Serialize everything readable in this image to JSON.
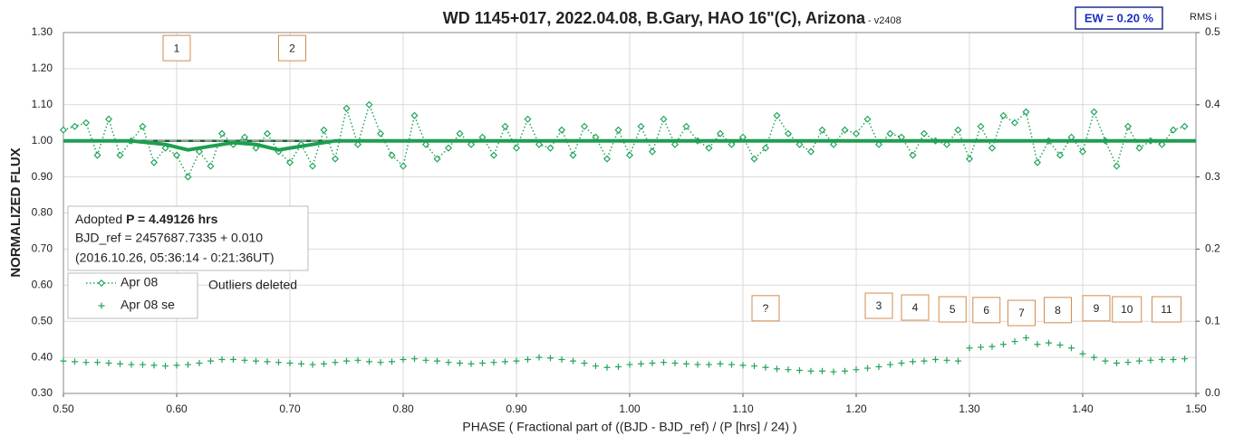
{
  "chart_data": {
    "type": "scatter",
    "title": "WD 1145+017, 2022.04.08, B.Gary, HAO 16\"(C), Arizona",
    "subtitle": " - v2408",
    "x_label": "PHASE ( Fractional part of ((BJD - BJD_ref) / (P [hrs] / 24) )",
    "y_label": "NORMALIZED FLUX",
    "y2_label": "RMS i",
    "ew_label": "EW = 0.20 %",
    "info": {
      "prefix": "Adopted ",
      "period": "P = 4.49126 hrs",
      "bjd": "BJD_ref = 2457687.7335 + 0.010",
      "date": "(2016.10.26, 05:36:14 - 0:21:36UT)"
    },
    "note": "Outliers deleted",
    "xlim": [
      0.5,
      1.5
    ],
    "xticks": [
      {
        "value": 0.5,
        "label": "0.50"
      },
      {
        "value": 0.6,
        "label": "0.60"
      },
      {
        "value": 0.7,
        "label": "0.70"
      },
      {
        "value": 0.8,
        "label": "0.80"
      },
      {
        "value": 0.9,
        "label": "0.90"
      },
      {
        "value": 1.0,
        "label": "1.00"
      },
      {
        "value": 1.1,
        "label": "1.10"
      },
      {
        "value": 1.2,
        "label": "1.20"
      },
      {
        "value": 1.3,
        "label": "1.30"
      },
      {
        "value": 1.4,
        "label": "1.40"
      },
      {
        "value": 1.5,
        "label": "1.50"
      }
    ],
    "ylim": [
      0.3,
      1.3
    ],
    "yticks": [
      {
        "value": 0.3,
        "label": "0.30"
      },
      {
        "value": 0.4,
        "label": "0.40"
      },
      {
        "value": 0.5,
        "label": "0.50"
      },
      {
        "value": 0.6,
        "label": "0.60"
      },
      {
        "value": 0.7,
        "label": "0.70"
      },
      {
        "value": 0.8,
        "label": "0.80"
      },
      {
        "value": 0.9,
        "label": "0.90"
      },
      {
        "value": 1.0,
        "label": "1.00"
      },
      {
        "value": 1.1,
        "label": "1.10"
      },
      {
        "value": 1.2,
        "label": "1.20"
      },
      {
        "value": 1.3,
        "label": "1.30"
      }
    ],
    "y2lim": [
      0,
      0.5
    ],
    "y2ticks": [
      {
        "value": 0,
        "label": "0.0"
      },
      0.1,
      0.2,
      0.3,
      0.4,
      0.5
    ],
    "grid": true,
    "reference_line": 1.0,
    "series": [
      {
        "name": "Apr 08",
        "color": "#22a55a",
        "marker": "diamond",
        "line": "dotted",
        "x": [
          0.5,
          0.51,
          0.52,
          0.53,
          0.54,
          0.55,
          0.56,
          0.57,
          0.58,
          0.59,
          0.6,
          0.61,
          0.62,
          0.63,
          0.64,
          0.65,
          0.66,
          0.67,
          0.68,
          0.69,
          0.7,
          0.71,
          0.72,
          0.73,
          0.74,
          0.75,
          0.76,
          0.77,
          0.78,
          0.79,
          0.8,
          0.81,
          0.82,
          0.83,
          0.84,
          0.85,
          0.86,
          0.87,
          0.88,
          0.89,
          0.9,
          0.91,
          0.92,
          0.93,
          0.94,
          0.95,
          0.96,
          0.97,
          0.98,
          0.99,
          1.0,
          1.01,
          1.02,
          1.03,
          1.04,
          1.05,
          1.06,
          1.07,
          1.08,
          1.09,
          1.1,
          1.11,
          1.12,
          1.13,
          1.14,
          1.15,
          1.16,
          1.17,
          1.18,
          1.19,
          1.2,
          1.21,
          1.22,
          1.23,
          1.24,
          1.25,
          1.26,
          1.27,
          1.28,
          1.29,
          1.3,
          1.31,
          1.32,
          1.33,
          1.34,
          1.35,
          1.36,
          1.37,
          1.38,
          1.39,
          1.4,
          1.41,
          1.42,
          1.43,
          1.44,
          1.45,
          1.46,
          1.47,
          1.48,
          1.49
        ],
        "values": [
          1.03,
          1.04,
          1.05,
          0.96,
          1.06,
          0.96,
          1.0,
          1.04,
          0.94,
          0.98,
          0.96,
          0.9,
          0.97,
          0.93,
          1.02,
          0.99,
          1.01,
          0.98,
          1.02,
          0.97,
          0.94,
          0.99,
          0.93,
          1.03,
          0.95,
          1.09,
          0.99,
          1.1,
          1.02,
          0.96,
          0.93,
          1.07,
          0.99,
          0.95,
          0.98,
          1.02,
          0.99,
          1.01,
          0.96,
          1.04,
          0.98,
          1.06,
          0.99,
          0.98,
          1.03,
          0.96,
          1.04,
          1.01,
          0.95,
          1.03,
          0.96,
          1.04,
          0.97,
          1.06,
          0.99,
          1.04,
          1.0,
          0.98,
          1.02,
          0.99,
          1.01,
          0.95,
          0.98,
          1.07,
          1.02,
          0.99,
          0.97,
          1.03,
          0.99,
          1.03,
          1.02,
          1.06,
          0.99,
          1.02,
          1.01,
          0.96,
          1.02,
          1.0,
          0.99,
          1.03,
          0.95,
          1.04,
          0.98,
          1.07,
          1.05,
          1.08,
          0.94,
          1.0,
          0.96,
          1.01,
          0.97,
          1.08,
          1.0,
          0.93,
          1.04,
          0.98,
          1.0,
          0.99,
          1.03,
          1.04
        ]
      },
      {
        "name": "Apr 08 se",
        "color": "#22a55a",
        "marker": "plus",
        "axis": "y2",
        "x": [
          0.5,
          0.51,
          0.52,
          0.53,
          0.54,
          0.55,
          0.56,
          0.57,
          0.58,
          0.59,
          0.6,
          0.61,
          0.62,
          0.63,
          0.64,
          0.65,
          0.66,
          0.67,
          0.68,
          0.69,
          0.7,
          0.71,
          0.72,
          0.73,
          0.74,
          0.75,
          0.76,
          0.77,
          0.78,
          0.79,
          0.8,
          0.81,
          0.82,
          0.83,
          0.84,
          0.85,
          0.86,
          0.87,
          0.88,
          0.89,
          0.9,
          0.91,
          0.92,
          0.93,
          0.94,
          0.95,
          0.96,
          0.97,
          0.98,
          0.99,
          1.0,
          1.01,
          1.02,
          1.03,
          1.04,
          1.05,
          1.06,
          1.07,
          1.08,
          1.09,
          1.1,
          1.11,
          1.12,
          1.13,
          1.14,
          1.15,
          1.16,
          1.17,
          1.18,
          1.19,
          1.2,
          1.21,
          1.22,
          1.23,
          1.24,
          1.25,
          1.26,
          1.27,
          1.28,
          1.29,
          1.3,
          1.31,
          1.32,
          1.33,
          1.34,
          1.35,
          1.36,
          1.37,
          1.38,
          1.39,
          1.4,
          1.41,
          1.42,
          1.43,
          1.44,
          1.45,
          1.46,
          1.47,
          1.48,
          1.49
        ],
        "values": [
          0.045,
          0.044,
          0.043,
          0.043,
          0.042,
          0.041,
          0.04,
          0.04,
          0.039,
          0.038,
          0.039,
          0.04,
          0.042,
          0.045,
          0.047,
          0.047,
          0.046,
          0.045,
          0.044,
          0.043,
          0.042,
          0.041,
          0.04,
          0.041,
          0.043,
          0.045,
          0.046,
          0.044,
          0.043,
          0.044,
          0.047,
          0.048,
          0.046,
          0.045,
          0.043,
          0.042,
          0.041,
          0.042,
          0.043,
          0.044,
          0.045,
          0.047,
          0.05,
          0.049,
          0.047,
          0.045,
          0.042,
          0.038,
          0.036,
          0.037,
          0.04,
          0.041,
          0.042,
          0.043,
          0.042,
          0.041,
          0.04,
          0.04,
          0.041,
          0.04,
          0.039,
          0.038,
          0.036,
          0.034,
          0.033,
          0.032,
          0.031,
          0.031,
          0.03,
          0.031,
          0.033,
          0.035,
          0.037,
          0.04,
          0.042,
          0.044,
          0.045,
          0.047,
          0.046,
          0.045,
          0.063,
          0.064,
          0.065,
          0.068,
          0.072,
          0.077,
          0.068,
          0.07,
          0.067,
          0.063,
          0.055,
          0.05,
          0.045,
          0.042,
          0.043,
          0.045,
          0.046,
          0.047,
          0.047,
          0.048
        ]
      },
      {
        "color": "#1e9e50",
        "line": "solid",
        "x": [
          0.5,
          0.56,
          0.59,
          0.61,
          0.63,
          0.65,
          0.67,
          0.69,
          0.71,
          0.74,
          1.5
        ],
        "values": [
          1.0,
          1.0,
          0.99,
          0.975,
          0.985,
          0.995,
          0.99,
          0.975,
          0.985,
          1.0,
          1.0
        ]
      }
    ],
    "annotations": [
      {
        "text": "1",
        "x": 0.6,
        "y": 1.257
      },
      {
        "text": "2",
        "x": 0.702,
        "y": 1.257
      },
      {
        "text": "?",
        "x": 1.12,
        "y": 0.536
      },
      {
        "text": "3",
        "x": 1.22,
        "y": 0.543
      },
      {
        "text": "4",
        "x": 1.252,
        "y": 0.538
      },
      {
        "text": "5",
        "x": 1.285,
        "y": 0.533
      },
      {
        "text": "6",
        "x": 1.315,
        "y": 0.531
      },
      {
        "text": "7",
        "x": 1.346,
        "y": 0.523
      },
      {
        "text": "8",
        "x": 1.378,
        "y": 0.531
      },
      {
        "text": "9",
        "x": 1.412,
        "y": 0.536
      },
      {
        "text": "10",
        "x": 1.439,
        "y": 0.533
      },
      {
        "text": "11",
        "x": 1.474,
        "y": 0.533
      }
    ]
  }
}
